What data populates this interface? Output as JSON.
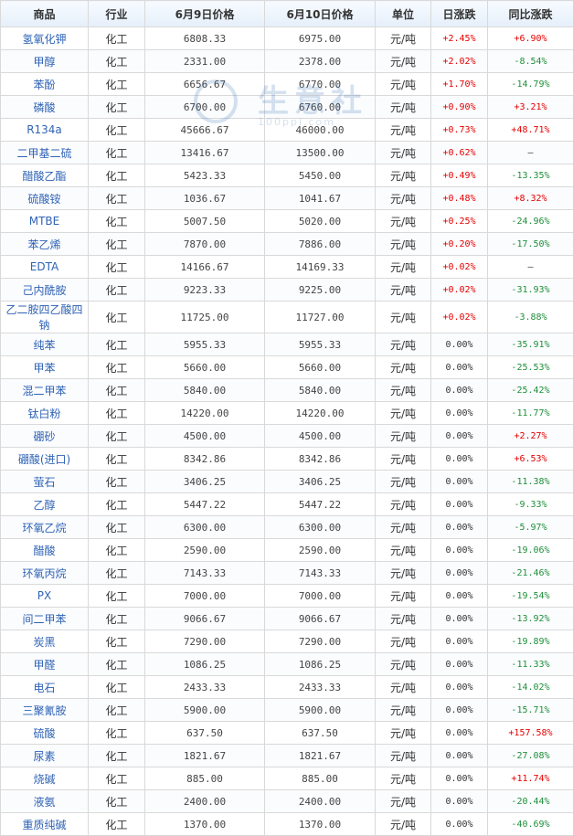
{
  "headers": [
    "商品",
    "行业",
    "6月9日价格",
    "6月10日价格",
    "单位",
    "日涨跌",
    "同比涨跌"
  ],
  "watermark": {
    "text": "生意社",
    "url": "100ppi.com"
  },
  "colors": {
    "up": "#e60000",
    "down": "#1f8f3b",
    "name": "#2f63b5"
  },
  "rows": [
    {
      "name": "氢氧化钾",
      "ind": "化工",
      "p1": "6808.33",
      "p2": "6975.00",
      "unit": "元/吨",
      "day": "+2.45%",
      "dayDir": "up",
      "yoy": "+6.90%",
      "yoyDir": "up"
    },
    {
      "name": "甲醇",
      "ind": "化工",
      "p1": "2331.00",
      "p2": "2378.00",
      "unit": "元/吨",
      "day": "+2.02%",
      "dayDir": "up",
      "yoy": "-8.54%",
      "yoyDir": "down"
    },
    {
      "name": "苯酚",
      "ind": "化工",
      "p1": "6656.67",
      "p2": "6770.00",
      "unit": "元/吨",
      "day": "+1.70%",
      "dayDir": "up",
      "yoy": "-14.79%",
      "yoyDir": "down"
    },
    {
      "name": "磷酸",
      "ind": "化工",
      "p1": "6700.00",
      "p2": "6760.00",
      "unit": "元/吨",
      "day": "+0.90%",
      "dayDir": "up",
      "yoy": "+3.21%",
      "yoyDir": "up"
    },
    {
      "name": "R134a",
      "ind": "化工",
      "p1": "45666.67",
      "p2": "46000.00",
      "unit": "元/吨",
      "day": "+0.73%",
      "dayDir": "up",
      "yoy": "+48.71%",
      "yoyDir": "up"
    },
    {
      "name": "二甲基二硫",
      "ind": "化工",
      "p1": "13416.67",
      "p2": "13500.00",
      "unit": "元/吨",
      "day": "+0.62%",
      "dayDir": "up",
      "yoy": "—",
      "yoyDir": "neutral"
    },
    {
      "name": "醋酸乙酯",
      "ind": "化工",
      "p1": "5423.33",
      "p2": "5450.00",
      "unit": "元/吨",
      "day": "+0.49%",
      "dayDir": "up",
      "yoy": "-13.35%",
      "yoyDir": "down"
    },
    {
      "name": "硫酸铵",
      "ind": "化工",
      "p1": "1036.67",
      "p2": "1041.67",
      "unit": "元/吨",
      "day": "+0.48%",
      "dayDir": "up",
      "yoy": "+8.32%",
      "yoyDir": "up"
    },
    {
      "name": "MTBE",
      "ind": "化工",
      "p1": "5007.50",
      "p2": "5020.00",
      "unit": "元/吨",
      "day": "+0.25%",
      "dayDir": "up",
      "yoy": "-24.96%",
      "yoyDir": "down"
    },
    {
      "name": "苯乙烯",
      "ind": "化工",
      "p1": "7870.00",
      "p2": "7886.00",
      "unit": "元/吨",
      "day": "+0.20%",
      "dayDir": "up",
      "yoy": "-17.50%",
      "yoyDir": "down"
    },
    {
      "name": "EDTA",
      "ind": "化工",
      "p1": "14166.67",
      "p2": "14169.33",
      "unit": "元/吨",
      "day": "+0.02%",
      "dayDir": "up",
      "yoy": "—",
      "yoyDir": "neutral"
    },
    {
      "name": "己内酰胺",
      "ind": "化工",
      "p1": "9223.33",
      "p2": "9225.00",
      "unit": "元/吨",
      "day": "+0.02%",
      "dayDir": "up",
      "yoy": "-31.93%",
      "yoyDir": "down"
    },
    {
      "name": "乙二胺四乙酸四钠",
      "ind": "化工",
      "p1": "11725.00",
      "p2": "11727.00",
      "unit": "元/吨",
      "day": "+0.02%",
      "dayDir": "up",
      "yoy": "-3.88%",
      "yoyDir": "down"
    },
    {
      "name": "纯苯",
      "ind": "化工",
      "p1": "5955.33",
      "p2": "5955.33",
      "unit": "元/吨",
      "day": "0.00%",
      "dayDir": "neutral",
      "yoy": "-35.91%",
      "yoyDir": "down"
    },
    {
      "name": "甲苯",
      "ind": "化工",
      "p1": "5660.00",
      "p2": "5660.00",
      "unit": "元/吨",
      "day": "0.00%",
      "dayDir": "neutral",
      "yoy": "-25.53%",
      "yoyDir": "down"
    },
    {
      "name": "混二甲苯",
      "ind": "化工",
      "p1": "5840.00",
      "p2": "5840.00",
      "unit": "元/吨",
      "day": "0.00%",
      "dayDir": "neutral",
      "yoy": "-25.42%",
      "yoyDir": "down"
    },
    {
      "name": "钛白粉",
      "ind": "化工",
      "p1": "14220.00",
      "p2": "14220.00",
      "unit": "元/吨",
      "day": "0.00%",
      "dayDir": "neutral",
      "yoy": "-11.77%",
      "yoyDir": "down"
    },
    {
      "name": "硼砂",
      "ind": "化工",
      "p1": "4500.00",
      "p2": "4500.00",
      "unit": "元/吨",
      "day": "0.00%",
      "dayDir": "neutral",
      "yoy": "+2.27%",
      "yoyDir": "up"
    },
    {
      "name": "硼酸(进口)",
      "ind": "化工",
      "p1": "8342.86",
      "p2": "8342.86",
      "unit": "元/吨",
      "day": "0.00%",
      "dayDir": "neutral",
      "yoy": "+6.53%",
      "yoyDir": "up"
    },
    {
      "name": "萤石",
      "ind": "化工",
      "p1": "3406.25",
      "p2": "3406.25",
      "unit": "元/吨",
      "day": "0.00%",
      "dayDir": "neutral",
      "yoy": "-11.38%",
      "yoyDir": "down"
    },
    {
      "name": "乙醇",
      "ind": "化工",
      "p1": "5447.22",
      "p2": "5447.22",
      "unit": "元/吨",
      "day": "0.00%",
      "dayDir": "neutral",
      "yoy": "-9.33%",
      "yoyDir": "down"
    },
    {
      "name": "环氧乙烷",
      "ind": "化工",
      "p1": "6300.00",
      "p2": "6300.00",
      "unit": "元/吨",
      "day": "0.00%",
      "dayDir": "neutral",
      "yoy": "-5.97%",
      "yoyDir": "down"
    },
    {
      "name": "醋酸",
      "ind": "化工",
      "p1": "2590.00",
      "p2": "2590.00",
      "unit": "元/吨",
      "day": "0.00%",
      "dayDir": "neutral",
      "yoy": "-19.06%",
      "yoyDir": "down"
    },
    {
      "name": "环氧丙烷",
      "ind": "化工",
      "p1": "7143.33",
      "p2": "7143.33",
      "unit": "元/吨",
      "day": "0.00%",
      "dayDir": "neutral",
      "yoy": "-21.46%",
      "yoyDir": "down"
    },
    {
      "name": "PX",
      "ind": "化工",
      "p1": "7000.00",
      "p2": "7000.00",
      "unit": "元/吨",
      "day": "0.00%",
      "dayDir": "neutral",
      "yoy": "-19.54%",
      "yoyDir": "down"
    },
    {
      "name": "间二甲苯",
      "ind": "化工",
      "p1": "9066.67",
      "p2": "9066.67",
      "unit": "元/吨",
      "day": "0.00%",
      "dayDir": "neutral",
      "yoy": "-13.92%",
      "yoyDir": "down"
    },
    {
      "name": "炭黑",
      "ind": "化工",
      "p1": "7290.00",
      "p2": "7290.00",
      "unit": "元/吨",
      "day": "0.00%",
      "dayDir": "neutral",
      "yoy": "-19.89%",
      "yoyDir": "down"
    },
    {
      "name": "甲醛",
      "ind": "化工",
      "p1": "1086.25",
      "p2": "1086.25",
      "unit": "元/吨",
      "day": "0.00%",
      "dayDir": "neutral",
      "yoy": "-11.33%",
      "yoyDir": "down"
    },
    {
      "name": "电石",
      "ind": "化工",
      "p1": "2433.33",
      "p2": "2433.33",
      "unit": "元/吨",
      "day": "0.00%",
      "dayDir": "neutral",
      "yoy": "-14.02%",
      "yoyDir": "down"
    },
    {
      "name": "三聚氰胺",
      "ind": "化工",
      "p1": "5900.00",
      "p2": "5900.00",
      "unit": "元/吨",
      "day": "0.00%",
      "dayDir": "neutral",
      "yoy": "-15.71%",
      "yoyDir": "down"
    },
    {
      "name": "硫酸",
      "ind": "化工",
      "p1": "637.50",
      "p2": "637.50",
      "unit": "元/吨",
      "day": "0.00%",
      "dayDir": "neutral",
      "yoy": "+157.58%",
      "yoyDir": "up"
    },
    {
      "name": "尿素",
      "ind": "化工",
      "p1": "1821.67",
      "p2": "1821.67",
      "unit": "元/吨",
      "day": "0.00%",
      "dayDir": "neutral",
      "yoy": "-27.08%",
      "yoyDir": "down"
    },
    {
      "name": "烧碱",
      "ind": "化工",
      "p1": "885.00",
      "p2": "885.00",
      "unit": "元/吨",
      "day": "0.00%",
      "dayDir": "neutral",
      "yoy": "+11.74%",
      "yoyDir": "up"
    },
    {
      "name": "液氨",
      "ind": "化工",
      "p1": "2400.00",
      "p2": "2400.00",
      "unit": "元/吨",
      "day": "0.00%",
      "dayDir": "neutral",
      "yoy": "-20.44%",
      "yoyDir": "down"
    },
    {
      "name": "重质纯碱",
      "ind": "化工",
      "p1": "1370.00",
      "p2": "1370.00",
      "unit": "元/吨",
      "day": "0.00%",
      "dayDir": "neutral",
      "yoy": "-40.69%",
      "yoyDir": "down"
    }
  ]
}
